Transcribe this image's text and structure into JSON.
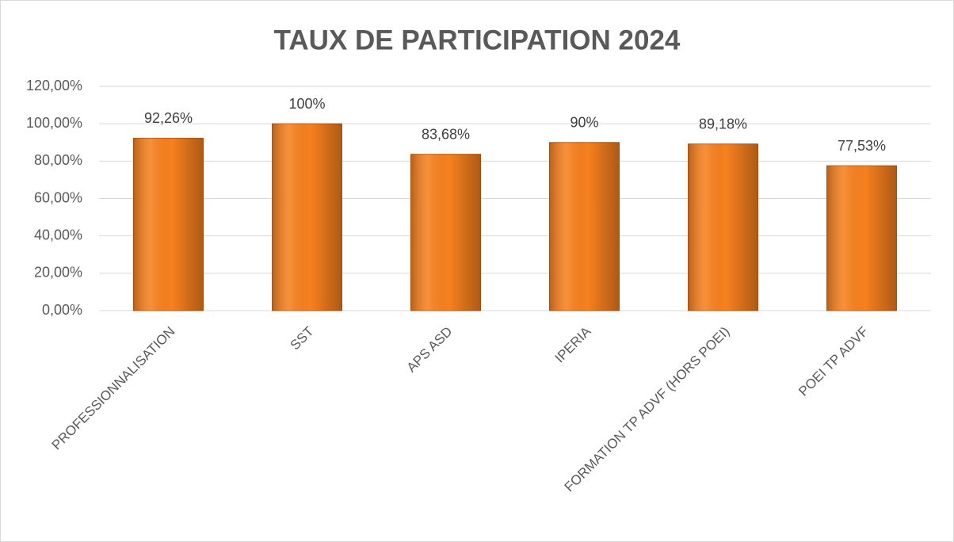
{
  "chart_data": {
    "type": "bar",
    "title": "TAUX DE PARTICIPATION 2024",
    "categories": [
      "PROFESSIONNALISATION",
      "SST",
      "APS ASD",
      "IPERIA",
      "FORMATION TP ADVF (HORS POEI)",
      "POEI TP ADVF"
    ],
    "values": [
      92.26,
      100,
      83.68,
      90,
      89.18,
      77.53
    ],
    "value_labels": [
      "92,26%",
      "100%",
      "83,68%",
      "90%",
      "89,18%",
      "77,53%"
    ],
    "color": "#f7801e",
    "ylim": [
      0,
      120
    ],
    "yticks": [
      {
        "value": 0,
        "label": "0,00%"
      },
      {
        "value": 20,
        "label": "20,00%"
      },
      {
        "value": 40,
        "label": "40,00%"
      },
      {
        "value": 60,
        "label": "60,00%"
      },
      {
        "value": 80,
        "label": "80,00%"
      },
      {
        "value": 100,
        "label": "100,00%"
      },
      {
        "value": 120,
        "label": "120,00%"
      }
    ],
    "grid": true
  }
}
